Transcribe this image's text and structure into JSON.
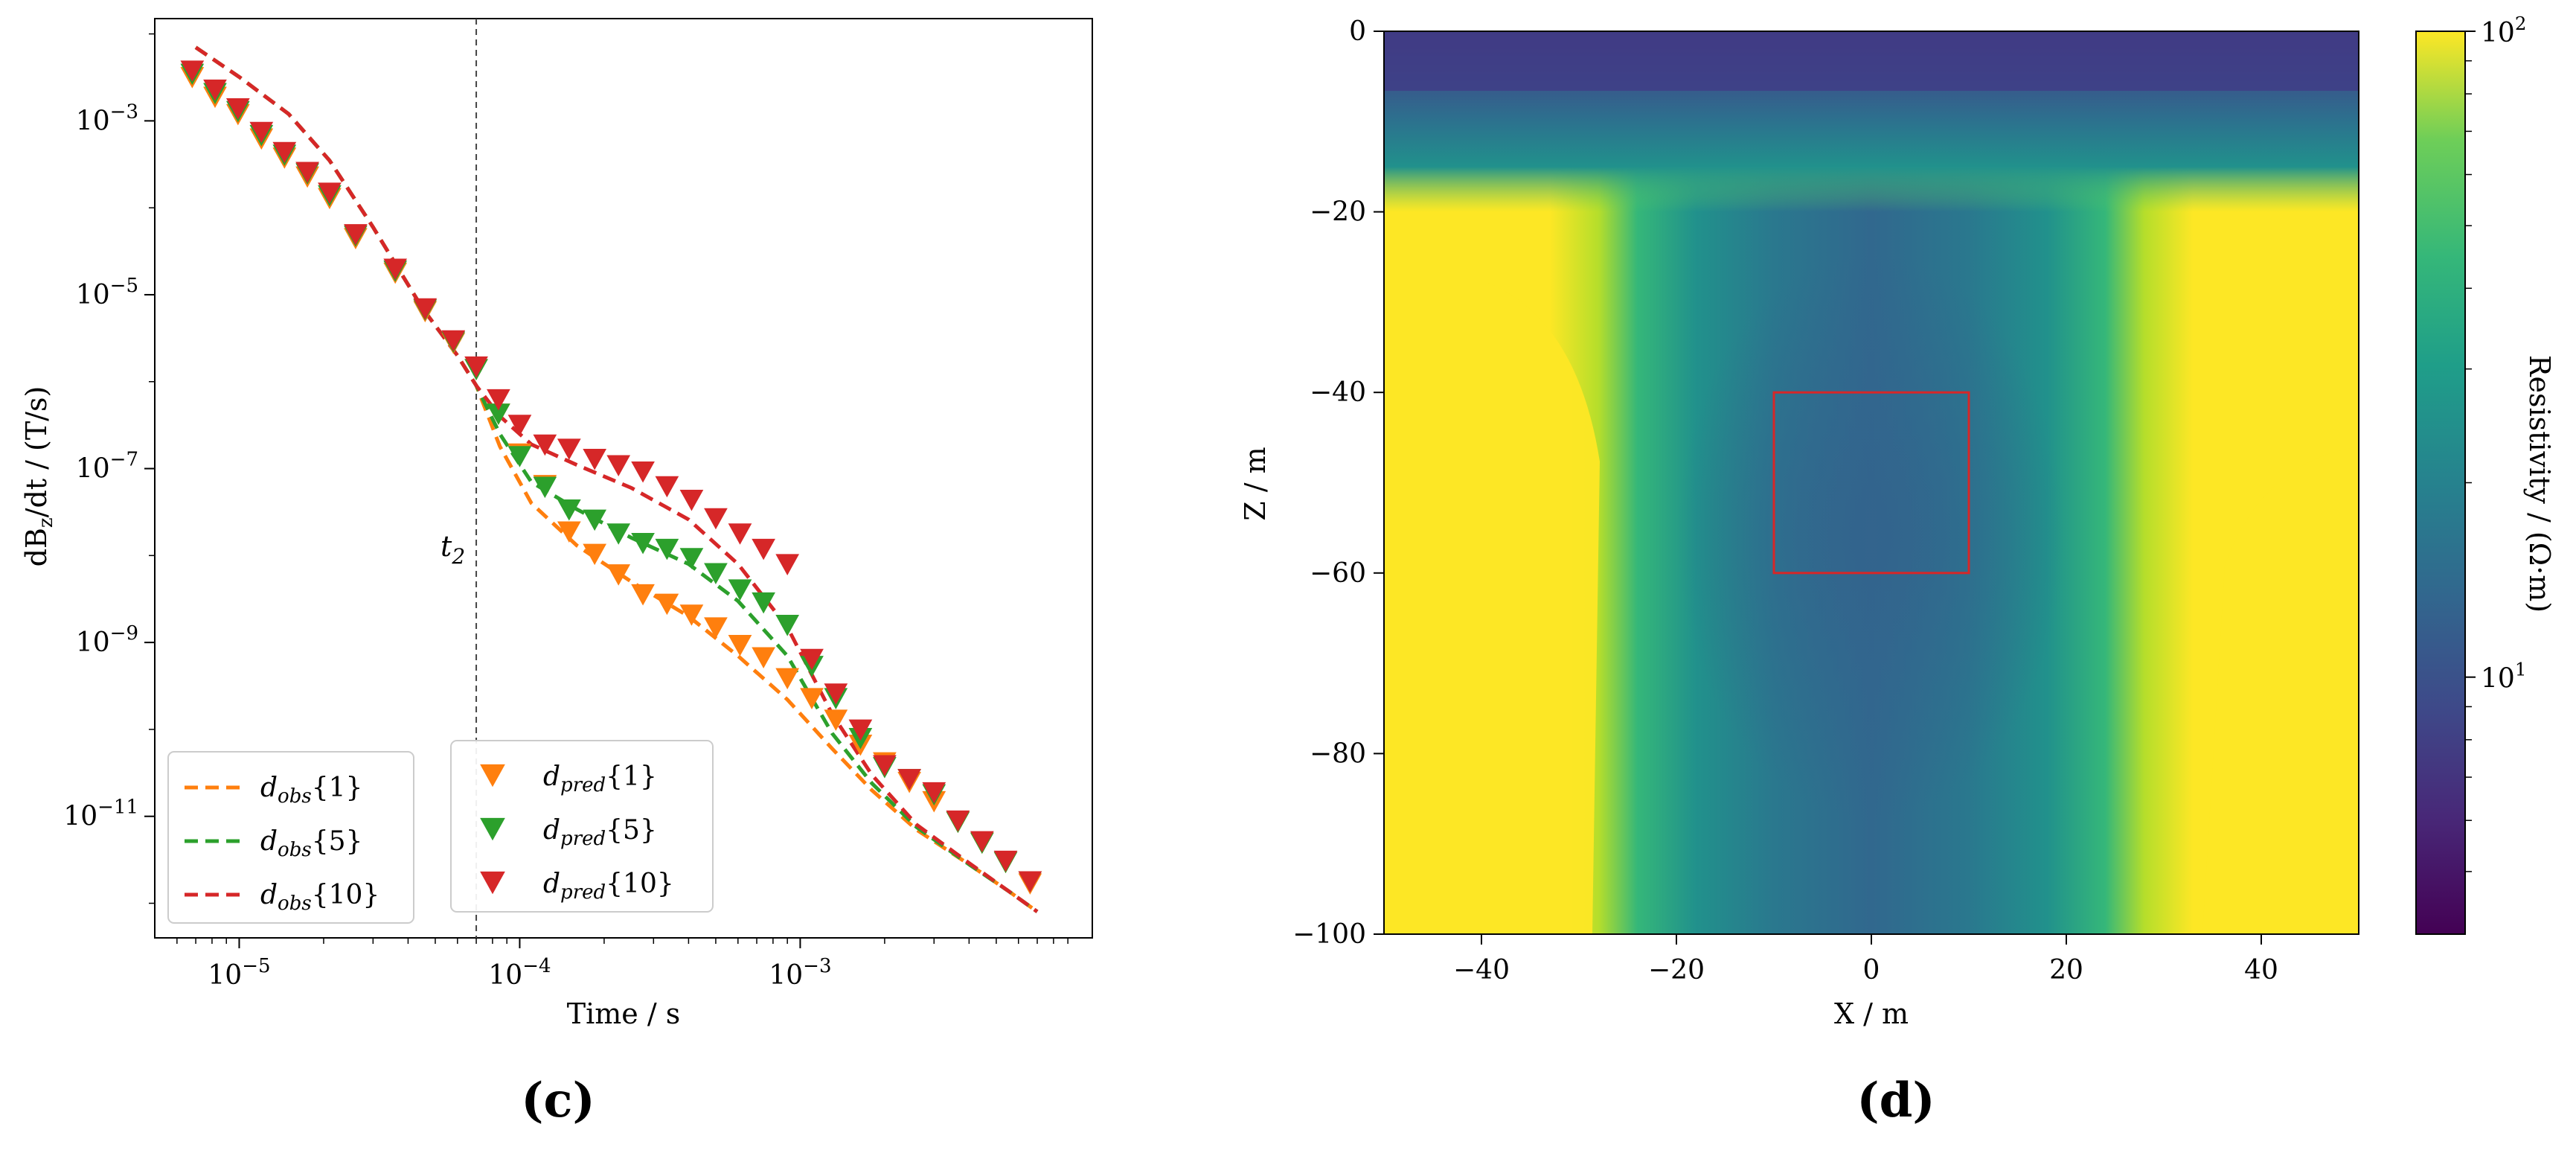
{
  "chart_data": [
    {
      "type": "line",
      "panel_label": "(c)",
      "xlabel": "Time / s",
      "ylabel": "dB_z/dt / (T/s)",
      "xscale": "log",
      "yscale": "log",
      "xlim": [
        5e-06,
        0.011
      ],
      "ylim": [
        4e-13,
        0.015
      ],
      "xticks": [
        {
          "value": 1e-05,
          "base": "10",
          "exp": "−5"
        },
        {
          "value": 0.0001,
          "base": "10",
          "exp": "−4"
        },
        {
          "value": 0.001,
          "base": "10",
          "exp": "−3"
        }
      ],
      "yticks": [
        {
          "value": 0.001,
          "base": "10",
          "exp": "−3"
        },
        {
          "value": 1e-05,
          "base": "10",
          "exp": "−5"
        },
        {
          "value": 1e-07,
          "base": "10",
          "exp": "−7"
        },
        {
          "value": 1e-09,
          "base": "10",
          "exp": "−9"
        },
        {
          "value": 1e-11,
          "base": "10",
          "exp": "−11"
        }
      ],
      "vline": {
        "x": 7e-05,
        "label_base": "t",
        "label_sub": "2"
      },
      "grid": false,
      "legend_left": [
        {
          "base": "d",
          "sub": "obs",
          "idx": "{1}",
          "color": "#ff7f0e",
          "style": "dashed"
        },
        {
          "base": "d",
          "sub": "obs",
          "idx": "{5}",
          "color": "#2ca02c",
          "style": "dashed"
        },
        {
          "base": "d",
          "sub": "obs",
          "idx": "{10}",
          "color": "#d62728",
          "style": "dashed"
        }
      ],
      "legend_right": [
        {
          "base": "d",
          "sub": "pred",
          "idx": "{1}",
          "color": "#ff7f0e",
          "style": "triangle"
        },
        {
          "base": "d",
          "sub": "pred",
          "idx": "{5}",
          "color": "#2ca02c",
          "style": "triangle"
        },
        {
          "base": "d",
          "sub": "pred",
          "idx": "{10}",
          "color": "#d62728",
          "style": "triangle"
        }
      ],
      "obs_series": [
        {
          "color": "#ff7f0e",
          "x": [
            7e-06,
            1e-05,
            1.5e-05,
            2.1e-05,
            3e-05,
            4.5e-05,
            6e-05,
            7e-05,
            8.5e-05,
            0.00011,
            0.00016,
            0.00025,
            0.0004,
            0.0006,
            0.0009,
            0.0013,
            0.0018,
            0.0026,
            0.004,
            0.0055,
            0.007
          ],
          "y": [
            0.007,
            0.0032,
            0.0012,
            0.00035,
            6e-05,
            7e-06,
            2e-06,
            9e-07,
            1.8e-07,
            4e-08,
            1.3e-08,
            5e-09,
            2e-09,
            7e-10,
            2.2e-10,
            6e-11,
            2e-11,
            7e-12,
            2.8e-12,
            1.4e-12,
            8e-13
          ]
        },
        {
          "color": "#2ca02c",
          "x": [
            7e-06,
            1e-05,
            1.5e-05,
            2.1e-05,
            3e-05,
            4.5e-05,
            6e-05,
            7e-05,
            8.5e-05,
            0.00011,
            0.00016,
            0.00025,
            0.0004,
            0.0006,
            0.0009,
            0.0013,
            0.0018,
            0.0026,
            0.004,
            0.0055,
            0.007
          ],
          "y": [
            0.007,
            0.0032,
            0.0012,
            0.00035,
            6e-05,
            7e-06,
            2e-06,
            9e-07,
            2.5e-07,
            7e-08,
            3.4e-08,
            1.6e-08,
            8e-09,
            3e-09,
            7e-10,
            9e-11,
            2.4e-11,
            7.5e-12,
            2.8e-12,
            1.4e-12,
            8e-13
          ]
        },
        {
          "color": "#d62728",
          "x": [
            7e-06,
            1e-05,
            1.5e-05,
            2.1e-05,
            3e-05,
            4.5e-05,
            6e-05,
            7e-05,
            8.5e-05,
            0.00011,
            0.00016,
            0.00025,
            0.0004,
            0.0006,
            0.0009,
            0.0013,
            0.0018,
            0.0026,
            0.004,
            0.0055,
            0.007
          ],
          "y": [
            0.007,
            0.0032,
            0.0012,
            0.00035,
            6e-05,
            7e-06,
            2e-06,
            9e-07,
            4e-07,
            1.9e-07,
            1.1e-07,
            6e-08,
            2.6e-08,
            8e-09,
            1.5e-09,
            1.5e-10,
            3e-11,
            8e-12,
            2.9e-12,
            1.4e-12,
            8e-13
          ]
        }
      ],
      "pred_series": [
        {
          "color": "#ff7f0e",
          "x": [
            6.8e-06,
            8.2e-06,
            9.9e-06,
            1.2e-05,
            1.45e-05,
            1.75e-05,
            2.1e-05,
            2.6e-05,
            3.6e-05,
            4.6e-05,
            5.8e-05,
            7e-05,
            8.4e-05,
            0.0001,
            0.000123,
            0.00015,
            0.000185,
            0.000225,
            0.000275,
            0.000335,
            0.00041,
            0.0005,
            0.00061,
            0.00074,
            0.0009,
            0.0011,
            0.00134,
            0.00164,
            0.002,
            0.00245,
            0.003,
            0.00365,
            0.00445,
            0.0054,
            0.0066
          ],
          "y": [
            0.0032,
            0.0019,
            0.0012,
            0.00063,
            0.00038,
            0.00023,
            0.00013,
            4.5e-05,
            1.8e-05,
            6.5e-06,
            2.8e-06,
            1.4e-06,
            4.3e-07,
            1.5e-07,
            6.5e-08,
            1.9e-08,
            1.05e-08,
            6.1e-09,
            3.6e-09,
            2.8e-09,
            2.1e-09,
            1.5e-09,
            9.4e-10,
            6.8e-10,
            3.9e-10,
            2.3e-10,
            1.3e-10,
            6.7e-11,
            4.2e-11,
            2.5e-11,
            1.5e-11,
            8.7e-12,
            5e-12,
            3e-12,
            1.7e-12
          ]
        },
        {
          "color": "#2ca02c",
          "x": [
            6.8e-06,
            8.2e-06,
            9.9e-06,
            1.2e-05,
            1.45e-05,
            1.75e-05,
            2.1e-05,
            2.6e-05,
            3.6e-05,
            4.6e-05,
            5.8e-05,
            7e-05,
            8.4e-05,
            0.0001,
            0.000123,
            0.00015,
            0.000185,
            0.000225,
            0.000275,
            0.000335,
            0.00041,
            0.0005,
            0.00061,
            0.00074,
            0.0009,
            0.0011,
            0.00134,
            0.00164,
            0.002,
            0.00245,
            0.003,
            0.00365,
            0.00445,
            0.0054,
            0.0066
          ],
          "y": [
            0.0035,
            0.0021,
            0.0013,
            0.00069,
            0.00041,
            0.00025,
            0.00014,
            4.8e-05,
            1.9e-05,
            6.8e-06,
            2.9e-06,
            1.4e-06,
            4.3e-07,
            1.4e-07,
            6.2e-08,
            3.4e-08,
            2.6e-08,
            1.8e-08,
            1.4e-08,
            1.2e-08,
            9.4e-09,
            6.3e-09,
            4.1e-09,
            2.9e-09,
            1.6e-09,
            5.4e-10,
            2.3e-10,
            8e-11,
            3.7e-11,
            2.7e-11,
            1.8e-11,
            8.7e-12,
            5e-12,
            3e-12,
            1.8e-12
          ]
        },
        {
          "color": "#d62728",
          "x": [
            6.8e-06,
            8.2e-06,
            9.9e-06,
            1.2e-05,
            1.45e-05,
            1.75e-05,
            2.1e-05,
            2.6e-05,
            3.6e-05,
            4.6e-05,
            5.8e-05,
            7e-05,
            8.4e-05,
            0.0001,
            0.000123,
            0.00015,
            0.000185,
            0.000225,
            0.000275,
            0.000335,
            0.00041,
            0.0005,
            0.00061,
            0.00074,
            0.0009,
            0.0011,
            0.00134,
            0.00164,
            0.002,
            0.00245,
            0.003,
            0.00365,
            0.00445,
            0.0054,
            0.0066
          ],
          "y": [
            0.0038,
            0.0023,
            0.0014,
            0.00075,
            0.00044,
            0.00026,
            0.00015,
            5e-05,
            2e-05,
            7e-06,
            3e-06,
            1.5e-06,
            6.3e-07,
            3.2e-07,
            1.9e-07,
            1.7e-07,
            1.3e-07,
            1.1e-07,
            9.3e-08,
            6.3e-08,
            4.4e-08,
            2.7e-08,
            1.8e-08,
            1.2e-08,
            8e-09,
            6.5e-10,
            2.6e-10,
            1e-10,
            3.9e-11,
            2.7e-11,
            1.9e-11,
            9e-12,
            5.2e-12,
            3.1e-12,
            1.8e-12
          ]
        }
      ]
    },
    {
      "type": "heatmap",
      "panel_label": "(d)",
      "xlabel": "X / m",
      "ylabel": "Z / m",
      "xlim": [
        -50,
        50
      ],
      "ylim": [
        -100,
        0
      ],
      "xticks": [
        "−40",
        "−20",
        "0",
        "20",
        "40"
      ],
      "xtick_values": [
        -40,
        -20,
        0,
        20,
        40
      ],
      "yticks": [
        "0",
        "−20",
        "−40",
        "−60",
        "−80",
        "−100"
      ],
      "ytick_values": [
        0,
        -20,
        -40,
        -60,
        -80,
        -100
      ],
      "colormap": "viridis",
      "colorbar_label": "Resistivity / (Ω·m)",
      "colorbar_scale": "log",
      "colorbar_range": [
        4,
        100
      ],
      "colorbar_ticks": [
        {
          "value": 10,
          "base": "10",
          "exp": "1"
        },
        {
          "value": 100,
          "base": "10",
          "exp": "2"
        }
      ],
      "anomaly_box": {
        "x": [
          -10,
          10
        ],
        "z": [
          -60,
          -40
        ],
        "color": "#d62728"
      },
      "grid": false
    }
  ]
}
